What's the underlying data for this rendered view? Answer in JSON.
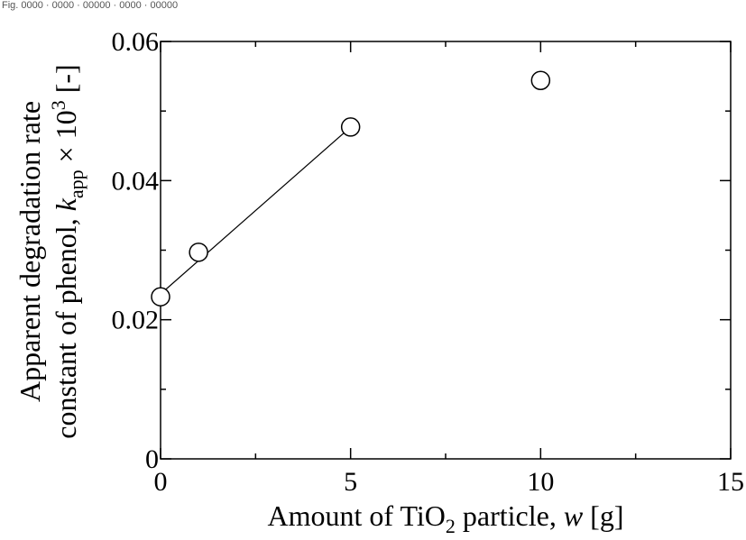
{
  "header_text": "Fig. 0000 · 0000 · 00000 · 0000 · 00000",
  "chart_data": {
    "type": "scatter",
    "x": [
      0,
      1,
      5,
      10
    ],
    "y": [
      0.0233,
      0.0297,
      0.0477,
      0.0544
    ],
    "fit_line": {
      "x": [
        0,
        5
      ],
      "y": [
        0.0237,
        0.0477
      ]
    },
    "xlim": [
      0,
      15
    ],
    "ylim": [
      0,
      0.06
    ],
    "xticks": [
      0,
      5,
      10,
      15
    ],
    "yticks": [
      0,
      0.02,
      0.04,
      0.06
    ],
    "xtick_labels": [
      "0",
      "5",
      "10",
      "15"
    ],
    "ytick_labels": [
      "0",
      "0.02",
      "0.04",
      "0.06"
    ],
    "xlabel": {
      "pre": "Amount of TiO",
      "sub": "2",
      "mid": " particle, ",
      "var": "w",
      "post": " [g]"
    },
    "ylabel_line1": "Apparent degradation rate",
    "ylabel_line2": {
      "pre": "constant of phenol, ",
      "var": "k",
      "sub": "app",
      "mid": " × 10",
      "sup": "3",
      "post": " [-]"
    },
    "grid": false,
    "legend": "none",
    "marker": "open-circle",
    "color": "#000000"
  }
}
